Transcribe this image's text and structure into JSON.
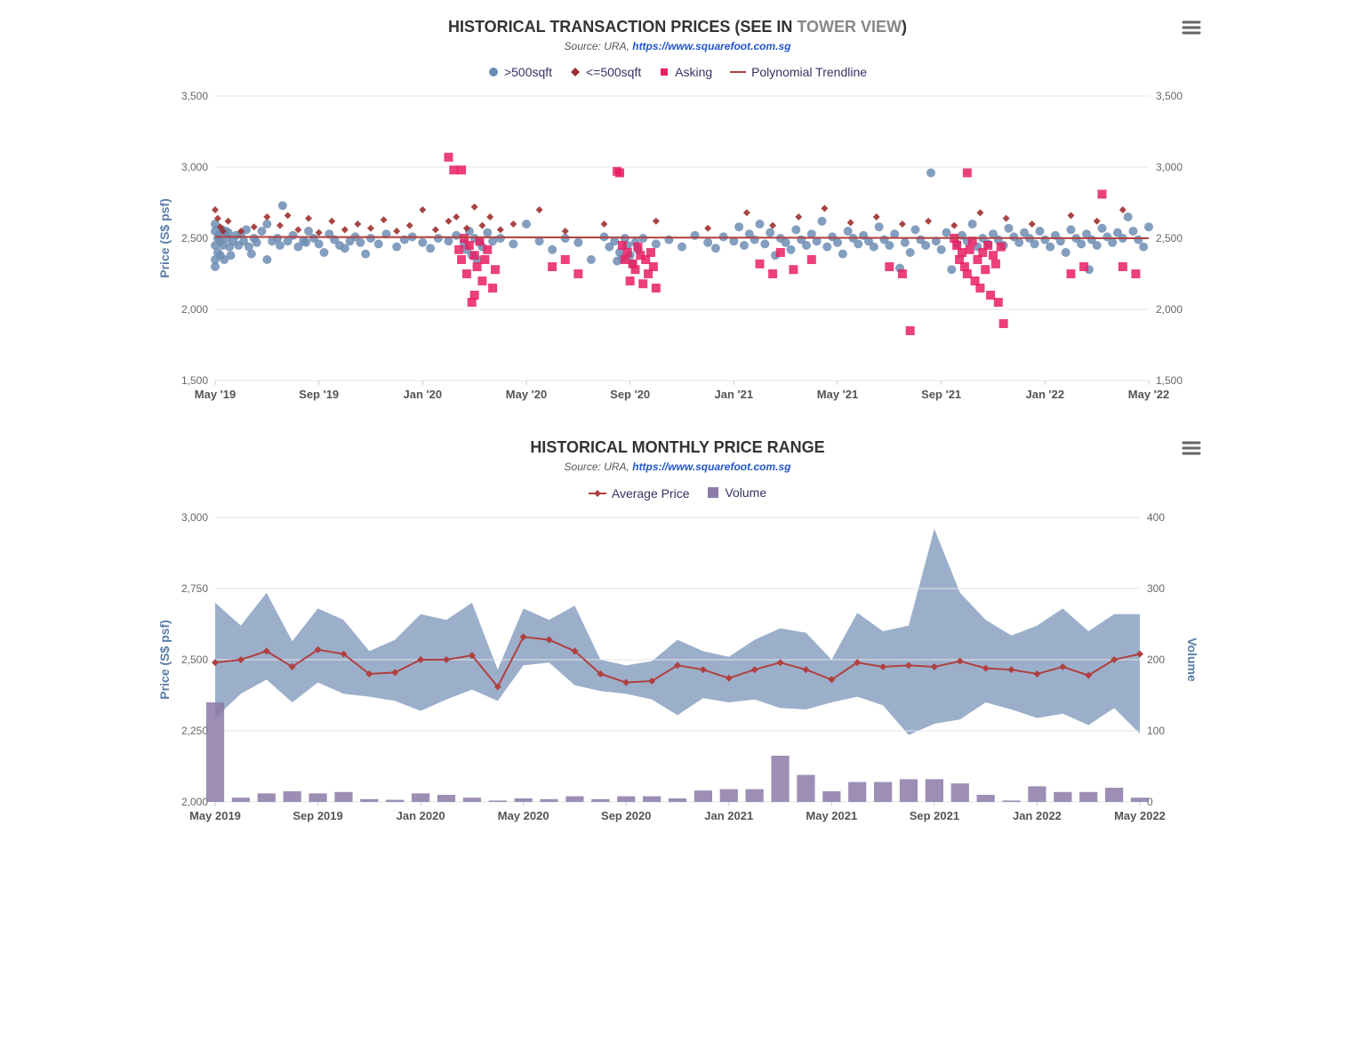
{
  "chart1": {
    "title_prefix": "HISTORICAL TRANSACTION PRICES (SEE IN ",
    "title_link": "TOWER VIEW",
    "title_suffix": ")",
    "subtitle_prefix": "Source: URA, ",
    "subtitle_link": "https://www.squarefoot.com.sg",
    "ylabel_left": "Price (S$ psf)",
    "ylim": [
      1500,
      3500
    ],
    "yticks": [
      1500,
      2000,
      2500,
      3000,
      3500
    ],
    "ytick_labels": [
      "1,500",
      "2,000",
      "2,500",
      "3,000",
      "3,500"
    ],
    "xticks": [
      0,
      4,
      8,
      12,
      16,
      20,
      24,
      28,
      32,
      36
    ],
    "xtick_labels": [
      "May '19",
      "Sep '19",
      "Jan '20",
      "May '20",
      "Sep '20",
      "Jan '21",
      "May '21",
      "Sep '21",
      "Jan '22",
      "May '22"
    ],
    "grid_color": "#e6e6e6",
    "background_color": "#ffffff",
    "series": {
      "over500": {
        "label": ">500sqft",
        "color": "#6d8db3",
        "marker": "circle",
        "marker_size": 5,
        "opacity": 0.85
      },
      "under500": {
        "label": "<=500sqft",
        "color": "#a03030",
        "marker": "diamond",
        "marker_size": 4,
        "opacity": 0.9
      },
      "asking": {
        "label": "Asking",
        "color": "#e91e63",
        "marker": "square",
        "marker_size": 5,
        "opacity": 0.85
      },
      "trend": {
        "label": "Polynomial Trendline",
        "color": "#b04040",
        "line_width": 2,
        "y_start": 2510,
        "y_end": 2500
      }
    },
    "over500_data": [
      [
        0,
        2450
      ],
      [
        0,
        2350
      ],
      [
        0,
        2550
      ],
      [
        0,
        2300
      ],
      [
        0,
        2600
      ],
      [
        0.1,
        2500
      ],
      [
        0.1,
        2400
      ],
      [
        0.15,
        2520
      ],
      [
        0.2,
        2480
      ],
      [
        0.2,
        2380
      ],
      [
        0.25,
        2560
      ],
      [
        0.3,
        2450
      ],
      [
        0.35,
        2350
      ],
      [
        0.4,
        2550
      ],
      [
        0.45,
        2500
      ],
      [
        0.5,
        2540
      ],
      [
        0.55,
        2440
      ],
      [
        0.6,
        2380
      ],
      [
        0.7,
        2480
      ],
      [
        0.8,
        2520
      ],
      [
        0.9,
        2450
      ],
      [
        1,
        2530
      ],
      [
        1.1,
        2480
      ],
      [
        1.2,
        2560
      ],
      [
        1.3,
        2440
      ],
      [
        1.4,
        2390
      ],
      [
        1.5,
        2500
      ],
      [
        1.6,
        2470
      ],
      [
        1.8,
        2550
      ],
      [
        2,
        2350
      ],
      [
        2,
        2600
      ],
      [
        2.2,
        2480
      ],
      [
        2.4,
        2500
      ],
      [
        2.5,
        2450
      ],
      [
        2.6,
        2730
      ],
      [
        2.8,
        2480
      ],
      [
        3,
        2520
      ],
      [
        3.2,
        2440
      ],
      [
        3.4,
        2480
      ],
      [
        3.5,
        2470
      ],
      [
        3.6,
        2550
      ],
      [
        3.8,
        2500
      ],
      [
        4,
        2460
      ],
      [
        4.2,
        2400
      ],
      [
        4.4,
        2530
      ],
      [
        4.6,
        2490
      ],
      [
        4.8,
        2450
      ],
      [
        5,
        2430
      ],
      [
        5.2,
        2480
      ],
      [
        5.4,
        2510
      ],
      [
        5.6,
        2470
      ],
      [
        5.8,
        2390
      ],
      [
        6,
        2500
      ],
      [
        6.3,
        2460
      ],
      [
        6.6,
        2530
      ],
      [
        7,
        2440
      ],
      [
        7.3,
        2490
      ],
      [
        7.6,
        2510
      ],
      [
        8,
        2470
      ],
      [
        8.3,
        2430
      ],
      [
        8.6,
        2500
      ],
      [
        9,
        2480
      ],
      [
        9.3,
        2520
      ],
      [
        9.6,
        2460
      ],
      [
        9.7,
        2420
      ],
      [
        9.8,
        2550
      ],
      [
        9.9,
        2380
      ],
      [
        10,
        2500
      ],
      [
        10.1,
        2350
      ],
      [
        10.2,
        2470
      ],
      [
        10.3,
        2440
      ],
      [
        10.5,
        2540
      ],
      [
        10.7,
        2480
      ],
      [
        11,
        2500
      ],
      [
        11.5,
        2460
      ],
      [
        12,
        2600
      ],
      [
        12.5,
        2480
      ],
      [
        13,
        2420
      ],
      [
        13.5,
        2500
      ],
      [
        14,
        2470
      ],
      [
        14.5,
        2350
      ],
      [
        15,
        2510
      ],
      [
        15.2,
        2440
      ],
      [
        15.4,
        2480
      ],
      [
        15.5,
        2340
      ],
      [
        15.6,
        2400
      ],
      [
        15.7,
        2360
      ],
      [
        15.8,
        2500
      ],
      [
        15.9,
        2450
      ],
      [
        16,
        2380
      ],
      [
        16.1,
        2320
      ],
      [
        16.2,
        2470
      ],
      [
        16.3,
        2420
      ],
      [
        16.5,
        2500
      ],
      [
        17,
        2460
      ],
      [
        17.5,
        2490
      ],
      [
        18,
        2440
      ],
      [
        18.5,
        2520
      ],
      [
        19,
        2470
      ],
      [
        19.3,
        2430
      ],
      [
        19.6,
        2510
      ],
      [
        20,
        2480
      ],
      [
        20.2,
        2580
      ],
      [
        20.4,
        2450
      ],
      [
        20.6,
        2530
      ],
      [
        20.8,
        2490
      ],
      [
        21,
        2600
      ],
      [
        21.2,
        2460
      ],
      [
        21.4,
        2540
      ],
      [
        21.6,
        2380
      ],
      [
        21.8,
        2500
      ],
      [
        22,
        2470
      ],
      [
        22.2,
        2420
      ],
      [
        22.4,
        2560
      ],
      [
        22.6,
        2490
      ],
      [
        22.8,
        2450
      ],
      [
        23,
        2530
      ],
      [
        23.2,
        2480
      ],
      [
        23.4,
        2620
      ],
      [
        23.6,
        2440
      ],
      [
        23.8,
        2510
      ],
      [
        24,
        2470
      ],
      [
        24.2,
        2390
      ],
      [
        24.4,
        2550
      ],
      [
        24.6,
        2500
      ],
      [
        24.8,
        2460
      ],
      [
        25,
        2520
      ],
      [
        25.2,
        2480
      ],
      [
        25.4,
        2440
      ],
      [
        25.6,
        2580
      ],
      [
        25.8,
        2490
      ],
      [
        26,
        2450
      ],
      [
        26.2,
        2530
      ],
      [
        26.4,
        2290
      ],
      [
        26.6,
        2470
      ],
      [
        26.8,
        2400
      ],
      [
        27,
        2560
      ],
      [
        27.2,
        2490
      ],
      [
        27.4,
        2450
      ],
      [
        27.6,
        2960
      ],
      [
        27.8,
        2480
      ],
      [
        28,
        2420
      ],
      [
        28.2,
        2540
      ],
      [
        28.4,
        2280
      ],
      [
        28.6,
        2460
      ],
      [
        28.8,
        2520
      ],
      [
        29,
        2480
      ],
      [
        29.2,
        2600
      ],
      [
        29.4,
        2440
      ],
      [
        29.6,
        2500
      ],
      [
        29.8,
        2460
      ],
      [
        30,
        2530
      ],
      [
        30.2,
        2490
      ],
      [
        30.4,
        2450
      ],
      [
        30.6,
        2570
      ],
      [
        30.8,
        2510
      ],
      [
        31,
        2470
      ],
      [
        31.2,
        2540
      ],
      [
        31.4,
        2500
      ],
      [
        31.6,
        2460
      ],
      [
        31.8,
        2550
      ],
      [
        32,
        2490
      ],
      [
        32.2,
        2440
      ],
      [
        32.4,
        2520
      ],
      [
        32.6,
        2480
      ],
      [
        32.8,
        2400
      ],
      [
        33,
        2560
      ],
      [
        33.2,
        2500
      ],
      [
        33.4,
        2460
      ],
      [
        33.6,
        2530
      ],
      [
        33.7,
        2280
      ],
      [
        33.8,
        2490
      ],
      [
        34,
        2450
      ],
      [
        34.2,
        2570
      ],
      [
        34.4,
        2510
      ],
      [
        34.6,
        2470
      ],
      [
        34.8,
        2540
      ],
      [
        35,
        2500
      ],
      [
        35.2,
        2650
      ],
      [
        35.4,
        2550
      ],
      [
        35.6,
        2490
      ],
      [
        35.8,
        2440
      ],
      [
        36,
        2580
      ]
    ],
    "under500_data": [
      [
        0,
        2700
      ],
      [
        0.1,
        2640
      ],
      [
        0.2,
        2580
      ],
      [
        0.3,
        2550
      ],
      [
        0.5,
        2620
      ],
      [
        1,
        2550
      ],
      [
        1.5,
        2580
      ],
      [
        2,
        2650
      ],
      [
        2.5,
        2590
      ],
      [
        2.8,
        2660
      ],
      [
        3.2,
        2560
      ],
      [
        3.6,
        2640
      ],
      [
        4,
        2540
      ],
      [
        4.5,
        2620
      ],
      [
        5,
        2560
      ],
      [
        5.5,
        2600
      ],
      [
        6,
        2570
      ],
      [
        6.5,
        2630
      ],
      [
        7,
        2550
      ],
      [
        7.5,
        2590
      ],
      [
        8,
        2700
      ],
      [
        8.5,
        2560
      ],
      [
        9,
        2620
      ],
      [
        9.3,
        2650
      ],
      [
        9.7,
        2570
      ],
      [
        10,
        2720
      ],
      [
        10.3,
        2590
      ],
      [
        10.6,
        2650
      ],
      [
        11,
        2560
      ],
      [
        11.5,
        2600
      ],
      [
        12.5,
        2700
      ],
      [
        13.5,
        2550
      ],
      [
        15,
        2600
      ],
      [
        17,
        2620
      ],
      [
        19,
        2570
      ],
      [
        20.5,
        2680
      ],
      [
        21.5,
        2590
      ],
      [
        22.5,
        2650
      ],
      [
        23.5,
        2710
      ],
      [
        24.5,
        2610
      ],
      [
        25.5,
        2650
      ],
      [
        26.5,
        2600
      ],
      [
        27.5,
        2620
      ],
      [
        28.5,
        2590
      ],
      [
        29.5,
        2680
      ],
      [
        30.5,
        2640
      ],
      [
        31.5,
        2600
      ],
      [
        33,
        2660
      ],
      [
        34,
        2620
      ],
      [
        35,
        2700
      ]
    ],
    "asking_data": [
      [
        9,
        3070
      ],
      [
        9.2,
        2980
      ],
      [
        9.4,
        2420
      ],
      [
        9.5,
        2350
      ],
      [
        9.5,
        2980
      ],
      [
        9.6,
        2500
      ],
      [
        9.7,
        2250
      ],
      [
        9.8,
        2450
      ],
      [
        9.9,
        2050
      ],
      [
        10,
        2100
      ],
      [
        10,
        2380
      ],
      [
        10.1,
        2300
      ],
      [
        10.2,
        2480
      ],
      [
        10.3,
        2200
      ],
      [
        10.4,
        2350
      ],
      [
        10.5,
        2420
      ],
      [
        10.7,
        2150
      ],
      [
        10.8,
        2280
      ],
      [
        13,
        2300
      ],
      [
        13.5,
        2350
      ],
      [
        14,
        2250
      ],
      [
        15.5,
        2970
      ],
      [
        15.6,
        2960
      ],
      [
        15.7,
        2450
      ],
      [
        15.8,
        2350
      ],
      [
        15.9,
        2400
      ],
      [
        16,
        2200
      ],
      [
        16.1,
        2320
      ],
      [
        16.2,
        2280
      ],
      [
        16.3,
        2440
      ],
      [
        16.4,
        2380
      ],
      [
        16.5,
        2180
      ],
      [
        16.6,
        2350
      ],
      [
        16.7,
        2250
      ],
      [
        16.8,
        2400
      ],
      [
        16.9,
        2300
      ],
      [
        17,
        2150
      ],
      [
        21,
        2320
      ],
      [
        21.5,
        2250
      ],
      [
        21.8,
        2400
      ],
      [
        22.3,
        2280
      ],
      [
        23,
        2350
      ],
      [
        26,
        2300
      ],
      [
        26.5,
        2250
      ],
      [
        26.8,
        1850
      ],
      [
        28.5,
        2500
      ],
      [
        28.6,
        2450
      ],
      [
        28.7,
        2350
      ],
      [
        28.8,
        2400
      ],
      [
        28.9,
        2300
      ],
      [
        29,
        2250
      ],
      [
        29,
        2960
      ],
      [
        29.1,
        2420
      ],
      [
        29.2,
        2480
      ],
      [
        29.3,
        2200
      ],
      [
        29.4,
        2350
      ],
      [
        29.5,
        2150
      ],
      [
        29.6,
        2400
      ],
      [
        29.7,
        2280
      ],
      [
        29.8,
        2450
      ],
      [
        29.9,
        2100
      ],
      [
        30,
        2380
      ],
      [
        30.1,
        2320
      ],
      [
        30.2,
        2050
      ],
      [
        30.3,
        2440
      ],
      [
        30.4,
        1900
      ],
      [
        33,
        2250
      ],
      [
        33.5,
        2300
      ],
      [
        34.2,
        2810
      ],
      [
        35,
        2300
      ],
      [
        35.5,
        2250
      ]
    ]
  },
  "chart2": {
    "title": "HISTORICAL MONTHLY PRICE RANGE",
    "subtitle_prefix": "Source: URA, ",
    "subtitle_link": "https://www.squarefoot.com.sg",
    "ylabel_left": "Price (S$ psf)",
    "ylabel_right": "Volume",
    "ylim_left": [
      2000,
      3000
    ],
    "yticks_left": [
      2000,
      2250,
      2500,
      2750,
      3000
    ],
    "ytick_labels_left": [
      "2,000",
      "2,250",
      "2,500",
      "2,750",
      "3,000"
    ],
    "ylim_right": [
      0,
      400
    ],
    "yticks_right": [
      0,
      100,
      200,
      300,
      400
    ],
    "xticks": [
      0,
      4,
      8,
      12,
      16,
      20,
      24,
      28,
      32,
      36
    ],
    "xtick_labels": [
      "May 2019",
      "Sep 2019",
      "Jan 2020",
      "May 2020",
      "Sep 2020",
      "Jan 2021",
      "May 2021",
      "Sep 2021",
      "Jan 2022",
      "May 2022"
    ],
    "grid_color": "#e6e6e6",
    "series": {
      "avg_price": {
        "label": "Average Price",
        "color": "#b04040",
        "line_width": 2,
        "marker": "diamond",
        "marker_size": 4
      },
      "range": {
        "fill_color": "#7a94b8",
        "fill_opacity": 0.75
      },
      "volume": {
        "label": "Volume",
        "color": "#8c7aa8",
        "opacity": 0.85
      }
    },
    "months": [
      0,
      1,
      2,
      3,
      4,
      5,
      6,
      7,
      8,
      9,
      10,
      11,
      12,
      13,
      14,
      15,
      16,
      17,
      18,
      19,
      20,
      21,
      22,
      23,
      24,
      25,
      26,
      27,
      28,
      29,
      30,
      31,
      32,
      33,
      34,
      35,
      36
    ],
    "avg_price": [
      2490,
      2500,
      2530,
      2475,
      2535,
      2520,
      2450,
      2455,
      2500,
      2500,
      2515,
      2405,
      2580,
      2570,
      2530,
      2450,
      2420,
      2425,
      2480,
      2465,
      2435,
      2465,
      2490,
      2465,
      2430,
      2490,
      2475,
      2480,
      2475,
      2495,
      2470,
      2465,
      2450,
      2475,
      2445,
      2500,
      2520
    ],
    "price_low": [
      2295,
      2380,
      2430,
      2350,
      2420,
      2380,
      2370,
      2355,
      2320,
      2360,
      2395,
      2355,
      2480,
      2490,
      2410,
      2390,
      2380,
      2360,
      2305,
      2365,
      2350,
      2360,
      2330,
      2325,
      2350,
      2370,
      2340,
      2235,
      2275,
      2290,
      2350,
      2325,
      2295,
      2310,
      2270,
      2330,
      2240
    ],
    "price_high": [
      2700,
      2620,
      2735,
      2565,
      2680,
      2640,
      2530,
      2570,
      2660,
      2640,
      2700,
      2465,
      2680,
      2640,
      2690,
      2500,
      2480,
      2495,
      2570,
      2530,
      2510,
      2570,
      2610,
      2595,
      2500,
      2665,
      2600,
      2620,
      2960,
      2735,
      2640,
      2585,
      2620,
      2680,
      2600,
      2660,
      2660
    ],
    "volume": [
      140,
      6,
      12,
      15,
      12,
      14,
      4,
      3,
      12,
      10,
      6,
      2,
      5,
      4,
      8,
      4,
      8,
      8,
      5,
      16,
      18,
      18,
      65,
      38,
      15,
      28,
      28,
      32,
      32,
      26,
      10,
      2,
      22,
      14,
      14,
      20,
      6
    ]
  }
}
